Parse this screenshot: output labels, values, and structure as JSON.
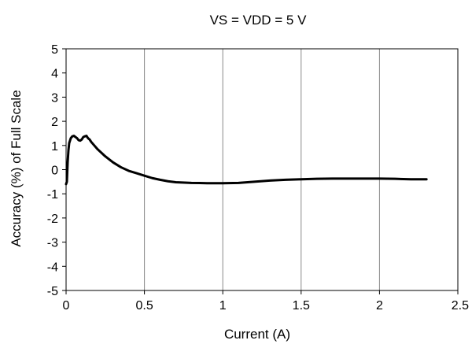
{
  "chart_data": {
    "type": "line",
    "title": "VS = VDD = 5 V",
    "xlabel": "Current (A)",
    "ylabel": "Accuracy (%) of Full Scale",
    "xlim": [
      0,
      2.5
    ],
    "ylim": [
      -5,
      5
    ],
    "x_ticks": [
      0,
      0.5,
      1,
      1.5,
      2,
      2.5
    ],
    "x_tick_labels": [
      "0",
      "0.5",
      "1",
      "1.5",
      "2",
      "2.5"
    ],
    "y_ticks": [
      5,
      4,
      3,
      2,
      1,
      0,
      -1,
      -2,
      -3,
      -4,
      -5
    ],
    "y_tick_labels": [
      "5",
      "4",
      "3",
      "2",
      "1",
      "0",
      "-1",
      "-2",
      "-3",
      "-4",
      "-5"
    ],
    "grid": {
      "x": true,
      "y": false
    },
    "legend": "none",
    "line_color": "#000000",
    "series": [
      {
        "x": [
          0.0,
          0.005,
          0.01,
          0.015,
          0.02,
          0.03,
          0.04,
          0.05,
          0.06,
          0.07,
          0.08,
          0.09,
          0.1,
          0.11,
          0.12,
          0.13,
          0.14,
          0.15,
          0.16,
          0.18,
          0.2,
          0.25,
          0.3,
          0.35,
          0.4,
          0.45,
          0.5,
          0.55,
          0.6,
          0.65,
          0.7,
          0.8,
          0.9,
          1.0,
          1.1,
          1.2,
          1.3,
          1.4,
          1.5,
          1.6,
          1.7,
          1.8,
          1.9,
          2.0,
          2.1,
          2.2,
          2.3
        ],
        "y": [
          -0.6,
          -0.5,
          0.3,
          0.8,
          1.1,
          1.3,
          1.38,
          1.4,
          1.35,
          1.3,
          1.22,
          1.2,
          1.25,
          1.35,
          1.38,
          1.4,
          1.3,
          1.25,
          1.15,
          1.0,
          0.85,
          0.55,
          0.3,
          0.1,
          -0.05,
          -0.15,
          -0.25,
          -0.35,
          -0.42,
          -0.48,
          -0.52,
          -0.55,
          -0.56,
          -0.56,
          -0.55,
          -0.5,
          -0.45,
          -0.42,
          -0.4,
          -0.38,
          -0.37,
          -0.37,
          -0.37,
          -0.37,
          -0.38,
          -0.4,
          -0.4
        ]
      }
    ]
  }
}
